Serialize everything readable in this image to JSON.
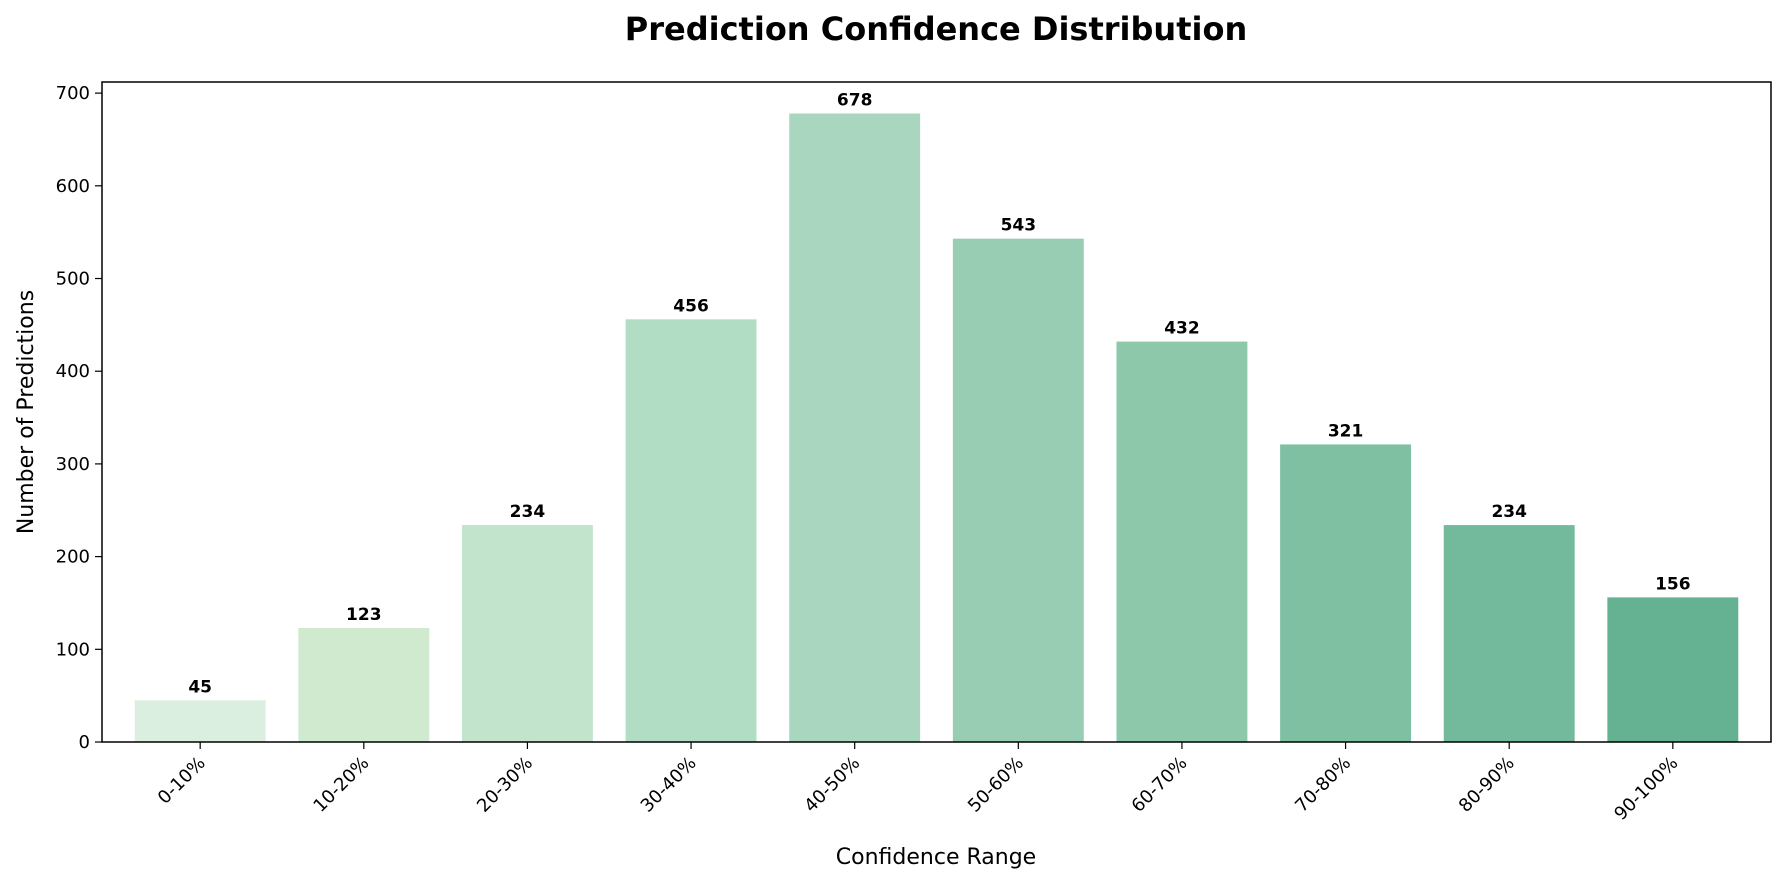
{
  "chart_data": {
    "type": "bar",
    "title": "Prediction Confidence Distribution",
    "xlabel": "Confidence Range",
    "ylabel": "Number of Predictions",
    "categories": [
      "0-10%",
      "10-20%",
      "20-30%",
      "30-40%",
      "40-50%",
      "50-60%",
      "60-70%",
      "70-80%",
      "80-90%",
      "90-100%"
    ],
    "values": [
      45,
      123,
      234,
      456,
      678,
      543,
      432,
      321,
      234,
      156
    ],
    "value_labels": [
      "45",
      "123",
      "234",
      "456",
      "678",
      "543",
      "432",
      "321",
      "234",
      "156"
    ],
    "ylim": [
      0,
      712
    ],
    "yticks": [
      0,
      100,
      200,
      300,
      400,
      500,
      600,
      700
    ],
    "ytick_labels": [
      "0",
      "100",
      "200",
      "300",
      "400",
      "500",
      "600",
      "700"
    ],
    "grid": false,
    "bar_colors": [
      "#dbefe0",
      "#d0eacf",
      "#c2e4cc",
      "#b2ddc5",
      "#a8d6bf",
      "#99cdb3",
      "#8dc8ab",
      "#7fc0a3",
      "#72ba9b",
      "#64b292"
    ]
  }
}
